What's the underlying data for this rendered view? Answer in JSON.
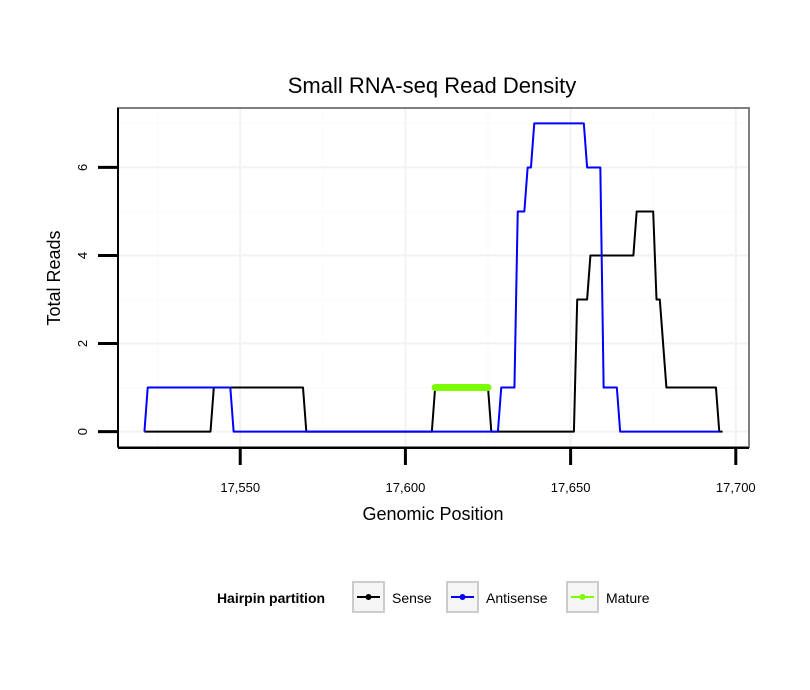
{
  "chart_data": {
    "type": "line",
    "title": "Small RNA-seq Read Density",
    "xlabel": "Genomic Position",
    "ylabel": "Total Reads",
    "xlim": [
      17513,
      17704
    ],
    "ylim": [
      -0.35,
      7.35
    ],
    "x_ticks": [
      17550,
      17600,
      17650,
      17700
    ],
    "x_tick_labels": [
      "17,550",
      "17,600",
      "17,650",
      "17,700"
    ],
    "y_ticks": [
      0,
      2,
      4,
      6
    ],
    "y_tick_labels": [
      "0",
      "2",
      "4",
      "6"
    ],
    "grid": true,
    "legend": {
      "title": "Hairpin partition",
      "position": "bottom",
      "entries": [
        "Sense",
        "Antisense",
        "Mature"
      ]
    },
    "series": [
      {
        "name": "Sense",
        "color": "#000000",
        "x": [
          17521,
          17524,
          17541,
          17542,
          17569,
          17570,
          17608,
          17609,
          17625,
          17626,
          17651,
          17652,
          17654,
          17655,
          17656,
          17657,
          17669,
          17670,
          17675,
          17676,
          17677,
          17679,
          17694,
          17695,
          17696
        ],
        "y": [
          0,
          0,
          0,
          1,
          1,
          0,
          0,
          1,
          1,
          0,
          0,
          3,
          3,
          3,
          4,
          4,
          4,
          5,
          5,
          3,
          3,
          1,
          1,
          0,
          0
        ]
      },
      {
        "name": "Antisense",
        "color": "#0000ff",
        "x": [
          17521,
          17522,
          17547,
          17548,
          17628,
          17629,
          17633,
          17634,
          17636,
          17637,
          17638,
          17639,
          17654,
          17655,
          17659,
          17660,
          17664,
          17665,
          17694,
          17695
        ],
        "y": [
          0,
          1,
          1,
          0,
          0,
          1,
          1,
          5,
          5,
          6,
          6,
          7,
          7,
          6,
          6,
          1,
          1,
          0,
          0,
          0
        ]
      },
      {
        "name": "Mature",
        "color": "#7cfc00",
        "x": [
          17609,
          17625
        ],
        "y": [
          1,
          1
        ]
      }
    ]
  }
}
